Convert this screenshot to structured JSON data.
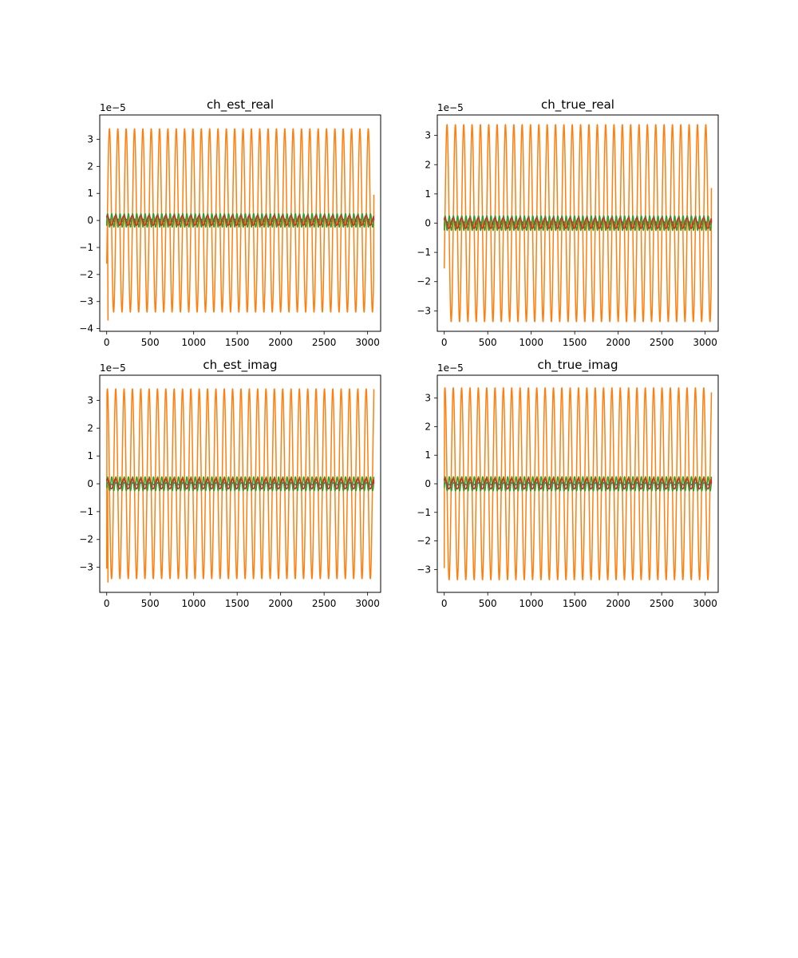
{
  "chart_data": [
    {
      "type": "line",
      "title": "ch_est_real",
      "offset_label": "1e−5",
      "xlim": [
        -80,
        3150
      ],
      "ylim": [
        -4.1,
        3.9
      ],
      "xticks": [
        0,
        500,
        1000,
        1500,
        2000,
        2500,
        3000
      ],
      "yticks": [
        -4,
        -3,
        -2,
        -1,
        0,
        1,
        2,
        3
      ],
      "x_range": [
        0,
        3072
      ],
      "series": [
        {
          "color": "#1f77b4",
          "amplitude": 0.05,
          "period": 96,
          "phase": 0.0,
          "start": -0.1,
          "end": 0.0
        },
        {
          "color": "#ff7f0e",
          "amplitude": 3.4,
          "period": 96,
          "phase": -0.5,
          "start": -1.6,
          "end": 0.95,
          "extreme_low": -3.7,
          "extreme_high": 3.55
        },
        {
          "color": "#2ca02c",
          "amplitude": 0.25,
          "period": 48,
          "phase": 0.3,
          "start": -0.2,
          "end": 0.1
        },
        {
          "color": "#d62728",
          "amplitude": 0.18,
          "period": 96,
          "phase": 1.2,
          "start": 0.1,
          "end": 0.0
        }
      ]
    },
    {
      "type": "line",
      "title": "ch_true_real",
      "offset_label": "1e−5",
      "xlim": [
        -80,
        3150
      ],
      "ylim": [
        -3.7,
        3.7
      ],
      "xticks": [
        0,
        500,
        1000,
        1500,
        2000,
        2500,
        3000
      ],
      "yticks": [
        -3,
        -2,
        -1,
        0,
        1,
        2,
        3
      ],
      "x_range": [
        0,
        3072
      ],
      "series": [
        {
          "color": "#1f77b4",
          "amplitude": 0.05,
          "period": 96,
          "phase": 0.0,
          "start": -0.1,
          "end": 0.0
        },
        {
          "color": "#ff7f0e",
          "amplitude": 3.38,
          "period": 96,
          "phase": -0.5,
          "start": -1.55,
          "end": 1.2
        },
        {
          "color": "#2ca02c",
          "amplitude": 0.25,
          "period": 48,
          "phase": 0.3,
          "start": -0.25,
          "end": 0.1
        },
        {
          "color": "#d62728",
          "amplitude": 0.18,
          "period": 96,
          "phase": 1.2,
          "start": 0.1,
          "end": 0.0
        }
      ]
    },
    {
      "type": "line",
      "title": "ch_est_imag",
      "offset_label": "1e−5",
      "xlim": [
        -80,
        3150
      ],
      "ylim": [
        -3.9,
        3.9
      ],
      "xticks": [
        0,
        500,
        1000,
        1500,
        2000,
        2500,
        3000
      ],
      "yticks": [
        -3,
        -2,
        -1,
        0,
        1,
        2,
        3
      ],
      "x_range": [
        0,
        3072
      ],
      "series": [
        {
          "color": "#1f77b4",
          "amplitude": 0.05,
          "period": 96,
          "phase": 0.0,
          "start": -0.1,
          "end": 0.0
        },
        {
          "color": "#ff7f0e",
          "amplitude": 3.42,
          "period": 96,
          "phase": 1.07,
          "start": -3.05,
          "end": 3.4,
          "extreme_low": -3.55,
          "extreme_high": 3.6
        },
        {
          "color": "#2ca02c",
          "amplitude": 0.25,
          "period": 48,
          "phase": 0.3,
          "start": -0.15,
          "end": 0.25
        },
        {
          "color": "#d62728",
          "amplitude": 0.18,
          "period": 96,
          "phase": 1.2,
          "start": 0.1,
          "end": 0.0
        }
      ]
    },
    {
      "type": "line",
      "title": "ch_true_imag",
      "offset_label": "1e−5",
      "xlim": [
        -80,
        3150
      ],
      "ylim": [
        -3.8,
        3.8
      ],
      "xticks": [
        0,
        500,
        1000,
        1500,
        2000,
        2500,
        3000
      ],
      "yticks": [
        -3,
        -2,
        -1,
        0,
        1,
        2,
        3
      ],
      "x_range": [
        0,
        3072
      ],
      "series": [
        {
          "color": "#1f77b4",
          "amplitude": 0.05,
          "period": 96,
          "phase": 0.0,
          "start": -0.1,
          "end": 0.0
        },
        {
          "color": "#ff7f0e",
          "amplitude": 3.37,
          "period": 96,
          "phase": 1.07,
          "start": -2.95,
          "end": 3.2
        },
        {
          "color": "#2ca02c",
          "amplitude": 0.25,
          "period": 48,
          "phase": 0.3,
          "start": -0.15,
          "end": 0.25
        },
        {
          "color": "#d62728",
          "amplitude": 0.18,
          "period": 96,
          "phase": 1.2,
          "start": 0.1,
          "end": 0.0
        }
      ]
    }
  ]
}
